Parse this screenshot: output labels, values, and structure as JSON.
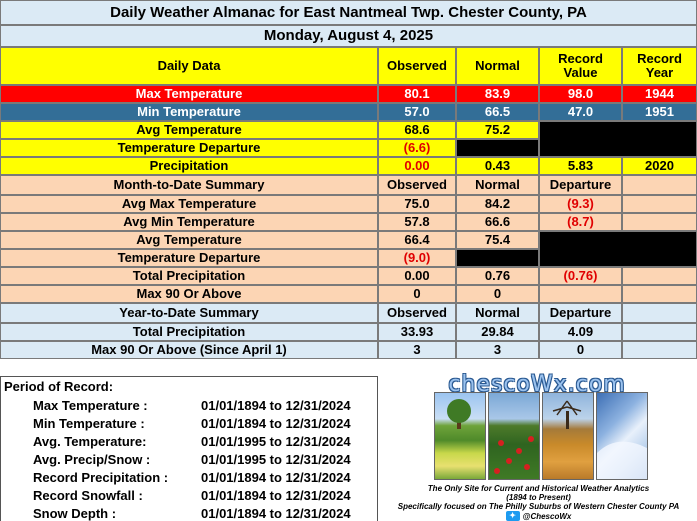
{
  "header": {
    "title": "Daily Weather Almanac for East Nantmeal Twp.  Chester County, PA",
    "date": "Monday, August 4, 2025"
  },
  "daily": {
    "columns": [
      "Daily Data",
      "Observed",
      "Normal",
      "Record Value",
      "Record Year"
    ],
    "rows": [
      {
        "label": "Max Temperature",
        "observed": "80.1",
        "normal": "83.9",
        "record_value": "98.0",
        "record_year": "1944"
      },
      {
        "label": "Min Temperature",
        "observed": "57.0",
        "normal": "66.5",
        "record_value": "47.0",
        "record_year": "1951"
      },
      {
        "label": "Avg Temperature",
        "observed": "68.6",
        "normal": "75.2",
        "record_value": "",
        "record_year": ""
      },
      {
        "label": "Temperature Departure",
        "observed": "(6.6)",
        "normal": "",
        "record_value": "",
        "record_year": ""
      },
      {
        "label": "Precipitation",
        "observed": "0.00",
        "normal": "0.43",
        "record_value": "5.83",
        "record_year": "2020"
      }
    ]
  },
  "mtd": {
    "columns": [
      "Month-to-Date Summary",
      "Observed",
      "Normal",
      "Departure"
    ],
    "rows": [
      {
        "label": "Avg Max Temperature",
        "observed": "75.0",
        "normal": "84.2",
        "departure": "(9.3)"
      },
      {
        "label": "Avg Min Temperature",
        "observed": "57.8",
        "normal": "66.6",
        "departure": "(8.7)"
      },
      {
        "label": "Avg Temperature",
        "observed": "66.4",
        "normal": "75.4",
        "departure": ""
      },
      {
        "label": "Temperature Departure",
        "observed": "(9.0)",
        "normal": "",
        "departure": ""
      },
      {
        "label": "Total Precipitation",
        "observed": "0.00",
        "normal": "0.76",
        "departure": "(0.76)"
      },
      {
        "label": "Max 90 Or Above",
        "observed": "0",
        "normal": "0",
        "departure": ""
      }
    ]
  },
  "ytd": {
    "columns": [
      "Year-to-Date Summary",
      "Observed",
      "Normal",
      "Departure"
    ],
    "rows": [
      {
        "label": "Total Precipitation",
        "observed": "33.93",
        "normal": "29.84",
        "departure": "4.09"
      },
      {
        "label": "Max 90 Or Above (Since April 1)",
        "observed": "3",
        "normal": "3",
        "departure": "0"
      }
    ]
  },
  "period_of_record": {
    "heading": "Period of Record:",
    "items": [
      {
        "label": "Max Temperature :",
        "range": "01/01/1894 to 12/31/2024"
      },
      {
        "label": "Min Temperature :",
        "range": "01/01/1894 to 12/31/2024"
      },
      {
        "label": "Avg. Temperature:",
        "range": "01/01/1995 to 12/31/2024"
      },
      {
        "label": "Avg. Precip/Snow :",
        "range": "01/01/1995 to 12/31/2024"
      },
      {
        "label": "Record Precipitation :",
        "range": "01/01/1894 to 12/31/2024"
      },
      {
        "label": "Record Snowfall :",
        "range": "01/01/1894 to 12/31/2024"
      },
      {
        "label": "Snow Depth :",
        "range": "01/01/1894 to 12/31/2024"
      }
    ]
  },
  "logo": {
    "site": "chescoWx.com",
    "tagline1": "The Only Site for Current and Historical Weather Analytics",
    "tagline2": "(1894 to Present)",
    "tagline3": "Specifically focused on The Philly Suburbs of Western Chester County PA",
    "handle": "@ChescoWx"
  },
  "colors": {
    "max_temp_row": "#ff0000",
    "min_temp_row": "#336e97",
    "daily_bg": "#ffff00",
    "mtd_bg": "#fcd5b4",
    "header_bg": "#dbeaf5",
    "negative_text": "#e00000"
  }
}
